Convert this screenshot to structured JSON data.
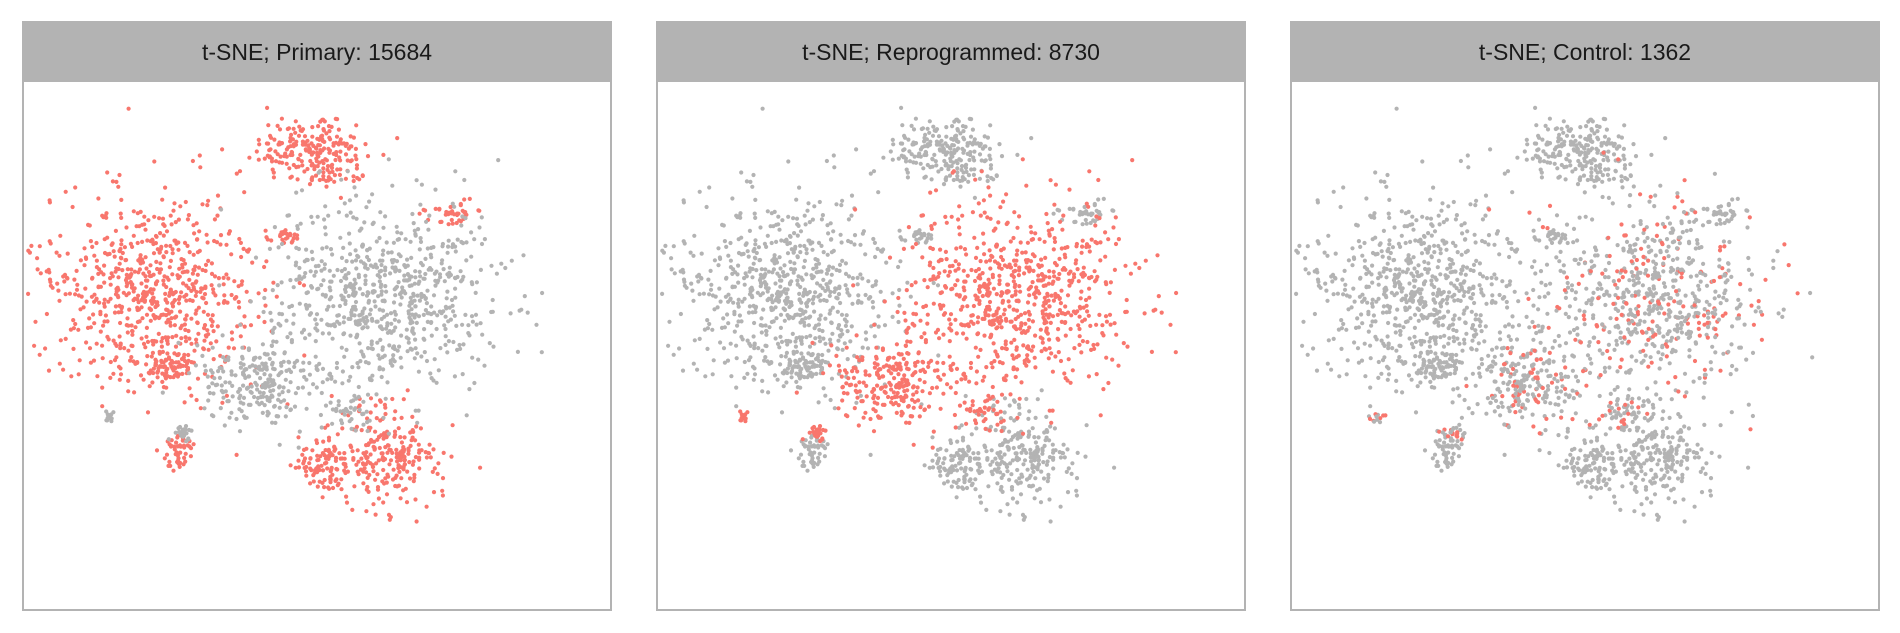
{
  "colors": {
    "highlight": "#f8766d",
    "background_points": "#b3b3b3",
    "strip": "#b3b3b3"
  },
  "chart_data": [
    {
      "type": "scatter",
      "title": "t-SNE; Primary: 15684",
      "highlight": "Primary",
      "count": 15684,
      "xlabel": "",
      "ylabel": "",
      "grid": false,
      "legend": "none"
    },
    {
      "type": "scatter",
      "title": "t-SNE; Reprogrammed: 8730",
      "highlight": "Reprogrammed",
      "count": 8730,
      "xlabel": "",
      "ylabel": "",
      "grid": false,
      "legend": "none"
    },
    {
      "type": "scatter",
      "title": "t-SNE; Control: 1362",
      "highlight": "Control",
      "count": 1362,
      "xlabel": "",
      "ylabel": "",
      "grid": false,
      "legend": "none"
    }
  ]
}
